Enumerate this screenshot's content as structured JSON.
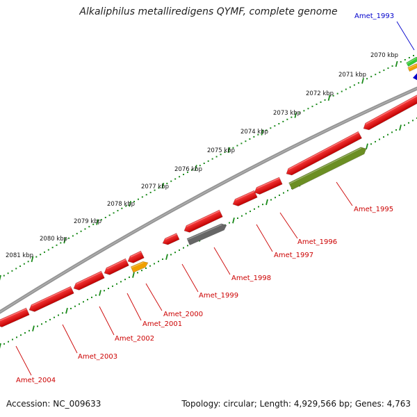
{
  "title": "Alkaliphilus metalliredigens QYMF, complete genome",
  "footer": {
    "accession": "Accession: NC_009633",
    "summary": "Topology: circular; Length: 4,929,566 bp; Genes: 4,763"
  },
  "kbp_ticks": [
    {
      "label": "2070 kbp"
    },
    {
      "label": "2071 kbp"
    },
    {
      "label": "2072 kbp"
    },
    {
      "label": "2073 kbp"
    },
    {
      "label": "2074 kbp"
    },
    {
      "label": "2075 kbp"
    },
    {
      "label": "2076 kbp"
    },
    {
      "label": "2077 kbp"
    },
    {
      "label": "2078 kbp"
    },
    {
      "label": "2079 kbp"
    },
    {
      "label": "2080 kbp"
    },
    {
      "label": "2081 kbp"
    }
  ],
  "gene_labels": [
    {
      "name": "Amet_1993",
      "color": "#0000cc"
    },
    {
      "name": "Amet_1995",
      "color": "#cc0000"
    },
    {
      "name": "Amet_1996",
      "color": "#cc0000"
    },
    {
      "name": "Amet_1997",
      "color": "#cc0000"
    },
    {
      "name": "Amet_1998",
      "color": "#cc0000"
    },
    {
      "name": "Amet_1999",
      "color": "#cc0000"
    },
    {
      "name": "Amet_2000",
      "color": "#cc0000"
    },
    {
      "name": "Amet_2001",
      "color": "#cc0000"
    },
    {
      "name": "Amet_2002",
      "color": "#cc0000"
    },
    {
      "name": "Amet_2003",
      "color": "#cc0000"
    },
    {
      "name": "Amet_2004",
      "color": "#cc0000"
    }
  ],
  "colors": {
    "gene_forward": "#e60000",
    "gene_reverse": "#e60000",
    "backbone": "#888888",
    "tick_green": "#1a8a1a",
    "gene_orange": "#f0a000",
    "gene_gray": "#666666",
    "gene_olive": "#6b8e23",
    "gene_blue": "#0000cc",
    "gene_green": "#33cc33"
  }
}
